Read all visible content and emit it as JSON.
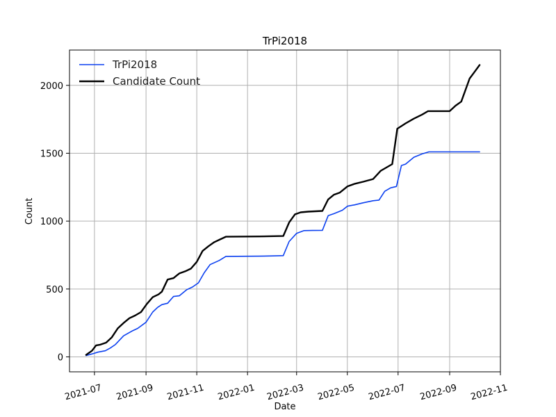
{
  "chart_data": {
    "type": "line",
    "title": "TrPi2018",
    "xlabel": "Date",
    "ylabel": "Count",
    "xlim": [
      "2021-06-01",
      "2022-11-01"
    ],
    "ylim": [
      -110,
      2260
    ],
    "grid": true,
    "legend_position": "top-left",
    "x_ticks": [
      "2021-07-01",
      "2021-09-01",
      "2021-11-01",
      "2022-01-01",
      "2022-03-01",
      "2022-05-01",
      "2022-07-01",
      "2022-09-01",
      "2022-11-01"
    ],
    "x_tick_labels": [
      "2021-07",
      "2021-09",
      "2021-11",
      "2022-01",
      "2022-03",
      "2022-05",
      "2022-07",
      "2022-09",
      "2022-11"
    ],
    "y_ticks": [
      0,
      500,
      1000,
      1500,
      2000
    ],
    "y_tick_labels": [
      "0",
      "500",
      "1000",
      "1500",
      "2000"
    ],
    "series": [
      {
        "name": "TrPi2018",
        "color": "#0a3ff0",
        "x": [
          "2021-06-21",
          "2021-06-30",
          "2021-07-05",
          "2021-07-14",
          "2021-07-20",
          "2021-07-26",
          "2021-08-05",
          "2021-08-15",
          "2021-08-22",
          "2021-09-01",
          "2021-09-09",
          "2021-09-15",
          "2021-09-20",
          "2021-09-27",
          "2021-10-04",
          "2021-10-11",
          "2021-10-20",
          "2021-10-27",
          "2021-11-03",
          "2021-11-10",
          "2021-11-17",
          "2021-11-28",
          "2021-12-06",
          "2022-01-15",
          "2022-02-01",
          "2022-02-13",
          "2022-02-20",
          "2022-03-01",
          "2022-03-10",
          "2022-03-20",
          "2022-04-01",
          "2022-04-08",
          "2022-04-15",
          "2022-04-25",
          "2022-05-01",
          "2022-05-10",
          "2022-05-20",
          "2022-06-01",
          "2022-06-08",
          "2022-06-15",
          "2022-06-22",
          "2022-06-29",
          "2022-07-05",
          "2022-07-10",
          "2022-07-20",
          "2022-07-30",
          "2022-08-07",
          "2022-08-20",
          "2022-09-01",
          "2022-09-15",
          "2022-10-01",
          "2022-10-07"
        ],
        "values": [
          10,
          25,
          35,
          45,
          65,
          90,
          155,
          190,
          210,
          255,
          330,
          365,
          385,
          395,
          445,
          450,
          495,
          515,
          545,
          620,
          680,
          710,
          740,
          742,
          744,
          746,
          850,
          910,
          930,
          931,
          932,
          1040,
          1055,
          1080,
          1110,
          1120,
          1135,
          1150,
          1155,
          1220,
          1245,
          1255,
          1410,
          1420,
          1470,
          1495,
          1510,
          1510,
          1510,
          1510,
          1510,
          1510
        ]
      },
      {
        "name": "Candidate Count",
        "color": "#000000",
        "x": [
          "2021-06-21",
          "2021-06-28",
          "2021-07-03",
          "2021-07-08",
          "2021-07-15",
          "2021-07-22",
          "2021-07-29",
          "2021-08-05",
          "2021-08-12",
          "2021-08-19",
          "2021-08-26",
          "2021-09-02",
          "2021-09-09",
          "2021-09-16",
          "2021-09-20",
          "2021-09-27",
          "2021-10-04",
          "2021-10-11",
          "2021-10-18",
          "2021-10-25",
          "2021-11-01",
          "2021-11-08",
          "2021-11-15",
          "2021-11-22",
          "2021-11-29",
          "2021-12-06",
          "2022-01-15",
          "2022-02-13",
          "2022-02-20",
          "2022-02-27",
          "2022-03-06",
          "2022-03-15",
          "2022-04-01",
          "2022-04-08",
          "2022-04-15",
          "2022-04-22",
          "2022-05-01",
          "2022-05-10",
          "2022-05-20",
          "2022-06-01",
          "2022-06-10",
          "2022-06-17",
          "2022-06-24",
          "2022-06-30",
          "2022-07-05",
          "2022-07-10",
          "2022-07-20",
          "2022-07-30",
          "2022-08-06",
          "2022-08-20",
          "2022-09-01",
          "2022-09-08",
          "2022-09-15",
          "2022-09-25",
          "2022-10-01",
          "2022-10-07"
        ],
        "values": [
          15,
          45,
          85,
          90,
          105,
          145,
          210,
          250,
          285,
          305,
          330,
          390,
          440,
          460,
          480,
          570,
          580,
          615,
          630,
          650,
          700,
          780,
          815,
          845,
          865,
          885,
          887,
          890,
          990,
          1050,
          1065,
          1070,
          1075,
          1160,
          1195,
          1210,
          1255,
          1275,
          1290,
          1310,
          1370,
          1395,
          1420,
          1680,
          1700,
          1720,
          1755,
          1785,
          1810,
          1810,
          1810,
          1850,
          1880,
          2050,
          2100,
          2150
        ]
      }
    ]
  }
}
